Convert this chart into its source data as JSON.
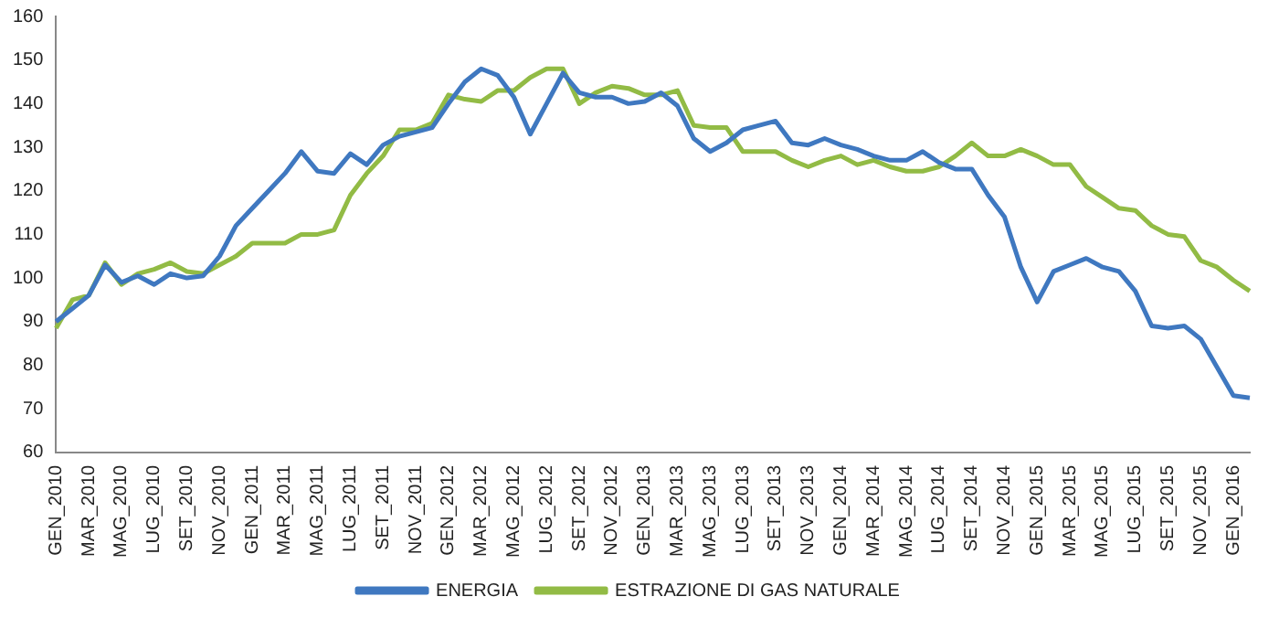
{
  "chart_data": {
    "type": "line",
    "categories": [
      "GEN_2010",
      null,
      "MAR_2010",
      null,
      "MAG_2010",
      null,
      "LUG_2010",
      null,
      "SET_2010",
      null,
      "NOV_2010",
      null,
      "GEN_2011",
      null,
      "MAR_2011",
      null,
      "MAG_2011",
      null,
      "LUG_2011",
      null,
      "SET_2011",
      null,
      "NOV_2011",
      null,
      "GEN_2012",
      null,
      "MAR_2012",
      null,
      "MAG_2012",
      null,
      "LUG_2012",
      null,
      "SET_2012",
      null,
      "NOV_2012",
      null,
      "GEN_2013",
      null,
      "MAR_2013",
      null,
      "MAG_2013",
      null,
      "LUG_2013",
      null,
      "SET_2013",
      null,
      "NOV_2013",
      null,
      "GEN_2014",
      null,
      "MAR_2014",
      null,
      "MAG_2014",
      null,
      "LUG_2014",
      null,
      "SET_2014",
      null,
      "NOV_2014",
      null,
      "GEN_2015",
      null,
      "MAR_2015",
      null,
      "MAG_2015",
      null,
      "LUG_2015",
      null,
      "SET_2015",
      null,
      "NOV_2015",
      null,
      "GEN_2016",
      null
    ],
    "series": [
      {
        "name": "ENERGIA",
        "color": "#3f78c0",
        "values": [
          90,
          93,
          96,
          103,
          99,
          100.5,
          98.5,
          101,
          100,
          100.5,
          105,
          112,
          116,
          120,
          124,
          129,
          124.5,
          124,
          128.5,
          126,
          130.5,
          132.5,
          133.5,
          134.5,
          140,
          145,
          148,
          146.5,
          141.5,
          133,
          140,
          147,
          142.5,
          141.5,
          141.5,
          140,
          140.5,
          142.5,
          139.5,
          132,
          129,
          131,
          134,
          135,
          136,
          131,
          130.5,
          132,
          130.5,
          129.5,
          128,
          127,
          127,
          129,
          126.5,
          125,
          125,
          119,
          114,
          102.5,
          94.5,
          101.5,
          103,
          104.5,
          102.5,
          101.5,
          97,
          89,
          88.5,
          89,
          86,
          79.5,
          73,
          72.5
        ]
      },
      {
        "name": "ESTRAZIONE DI GAS NATURALE",
        "color": "#92bb45",
        "values": [
          88.5,
          95,
          96,
          103.5,
          98.5,
          101,
          102,
          103.5,
          101.5,
          101,
          103,
          105,
          108,
          108,
          108,
          110,
          110,
          111,
          119,
          124,
          128,
          134,
          134,
          135.5,
          142,
          141,
          140.5,
          143,
          143,
          146,
          148,
          148,
          140,
          142.5,
          144,
          143.5,
          142,
          142,
          143,
          135,
          134.5,
          134.5,
          129,
          129,
          129,
          127,
          125.5,
          127,
          128,
          126,
          127,
          125.5,
          124.5,
          124.5,
          125.5,
          128,
          131,
          128,
          128,
          129.5,
          128,
          126,
          126,
          121,
          118.5,
          116,
          115.5,
          112,
          110,
          109.5,
          104,
          102.5,
          99.5,
          97
        ]
      }
    ],
    "ylim": [
      60,
      160
    ],
    "yticks": [
      60,
      70,
      80,
      90,
      100,
      110,
      120,
      130,
      140,
      150,
      160
    ],
    "grid": false,
    "legend": "bottom",
    "marker": "none",
    "line_style": "solid"
  }
}
